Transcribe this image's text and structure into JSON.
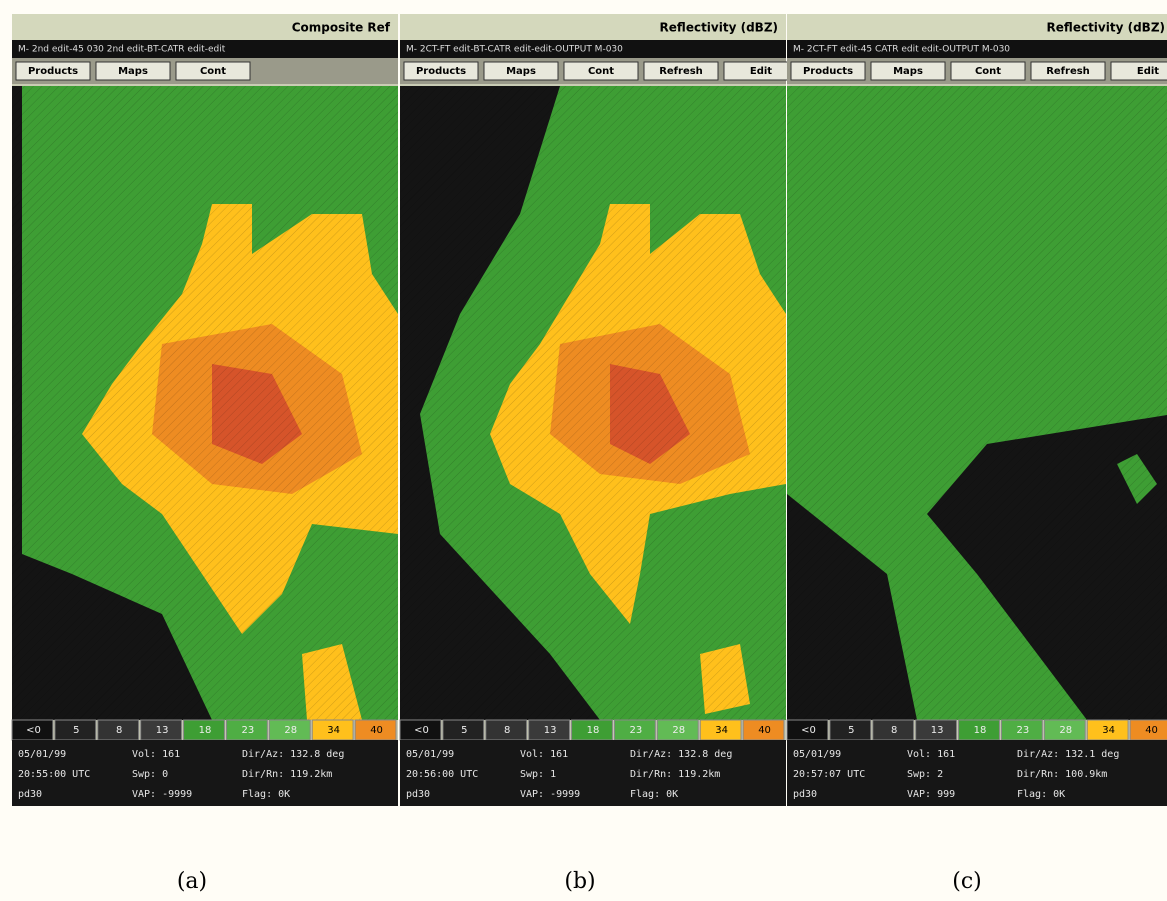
{
  "panels": [
    {
      "title": "Composite Ref",
      "menu": "M- 2nd  edit-45  030  2nd  edit-BT-CATR  edit-edit",
      "buttons": [
        "Products",
        "Maps",
        "Cont"
      ],
      "legend": [
        "<0",
        "5",
        "8",
        "13",
        "18",
        "23",
        "28",
        "34",
        "40"
      ],
      "status": [
        [
          "05/01/99",
          "Vol: 161",
          "Dir/Az: 132.8 deg"
        ],
        [
          "20:55:00 UTC",
          "Swp: 0",
          "Dir/Rn: 119.2km"
        ],
        [
          "pd30",
          "VAP: -9999",
          "Flag: 0K"
        ]
      ],
      "caption": "(a)"
    },
    {
      "title": "Reflectivity (dBZ)",
      "menu": "M- 2CT-FT  edit-BT-CATR  edit-edit-OUTPUT  M-030",
      "buttons": [
        "Products",
        "Maps",
        "Cont",
        "Refresh",
        "Edit"
      ],
      "legend": [
        "<0",
        "5",
        "8",
        "13",
        "18",
        "23",
        "28",
        "34",
        "40"
      ],
      "status": [
        [
          "05/01/99",
          "Vol: 161",
          "Dir/Az: 132.8 deg"
        ],
        [
          "20:56:00 UTC",
          "Swp: 1",
          "Dir/Rn: 119.2km"
        ],
        [
          "pd30",
          "VAP: -9999",
          "Flag: 0K"
        ]
      ],
      "caption": "(b)"
    },
    {
      "title": "Reflectivity (dBZ)",
      "menu": "M- 2CT-FT  edit-45  CATR  edit  edit-OUTPUT  M-030",
      "buttons": [
        "Products",
        "Maps",
        "Cont",
        "Refresh",
        "Edit"
      ],
      "legend": [
        "<0",
        "5",
        "8",
        "13",
        "18",
        "23",
        "28",
        "34",
        "40"
      ],
      "status": [
        [
          "05/01/99",
          "Vol: 161",
          "Dir/Az: 132.1 deg"
        ],
        [
          "20:57:07 UTC",
          "Swp: 2",
          "Dir/Rn: 100.9km"
        ],
        [
          "pd30",
          "VAP: 999",
          "Flag: 0K"
        ]
      ],
      "caption": "(c)"
    }
  ]
}
